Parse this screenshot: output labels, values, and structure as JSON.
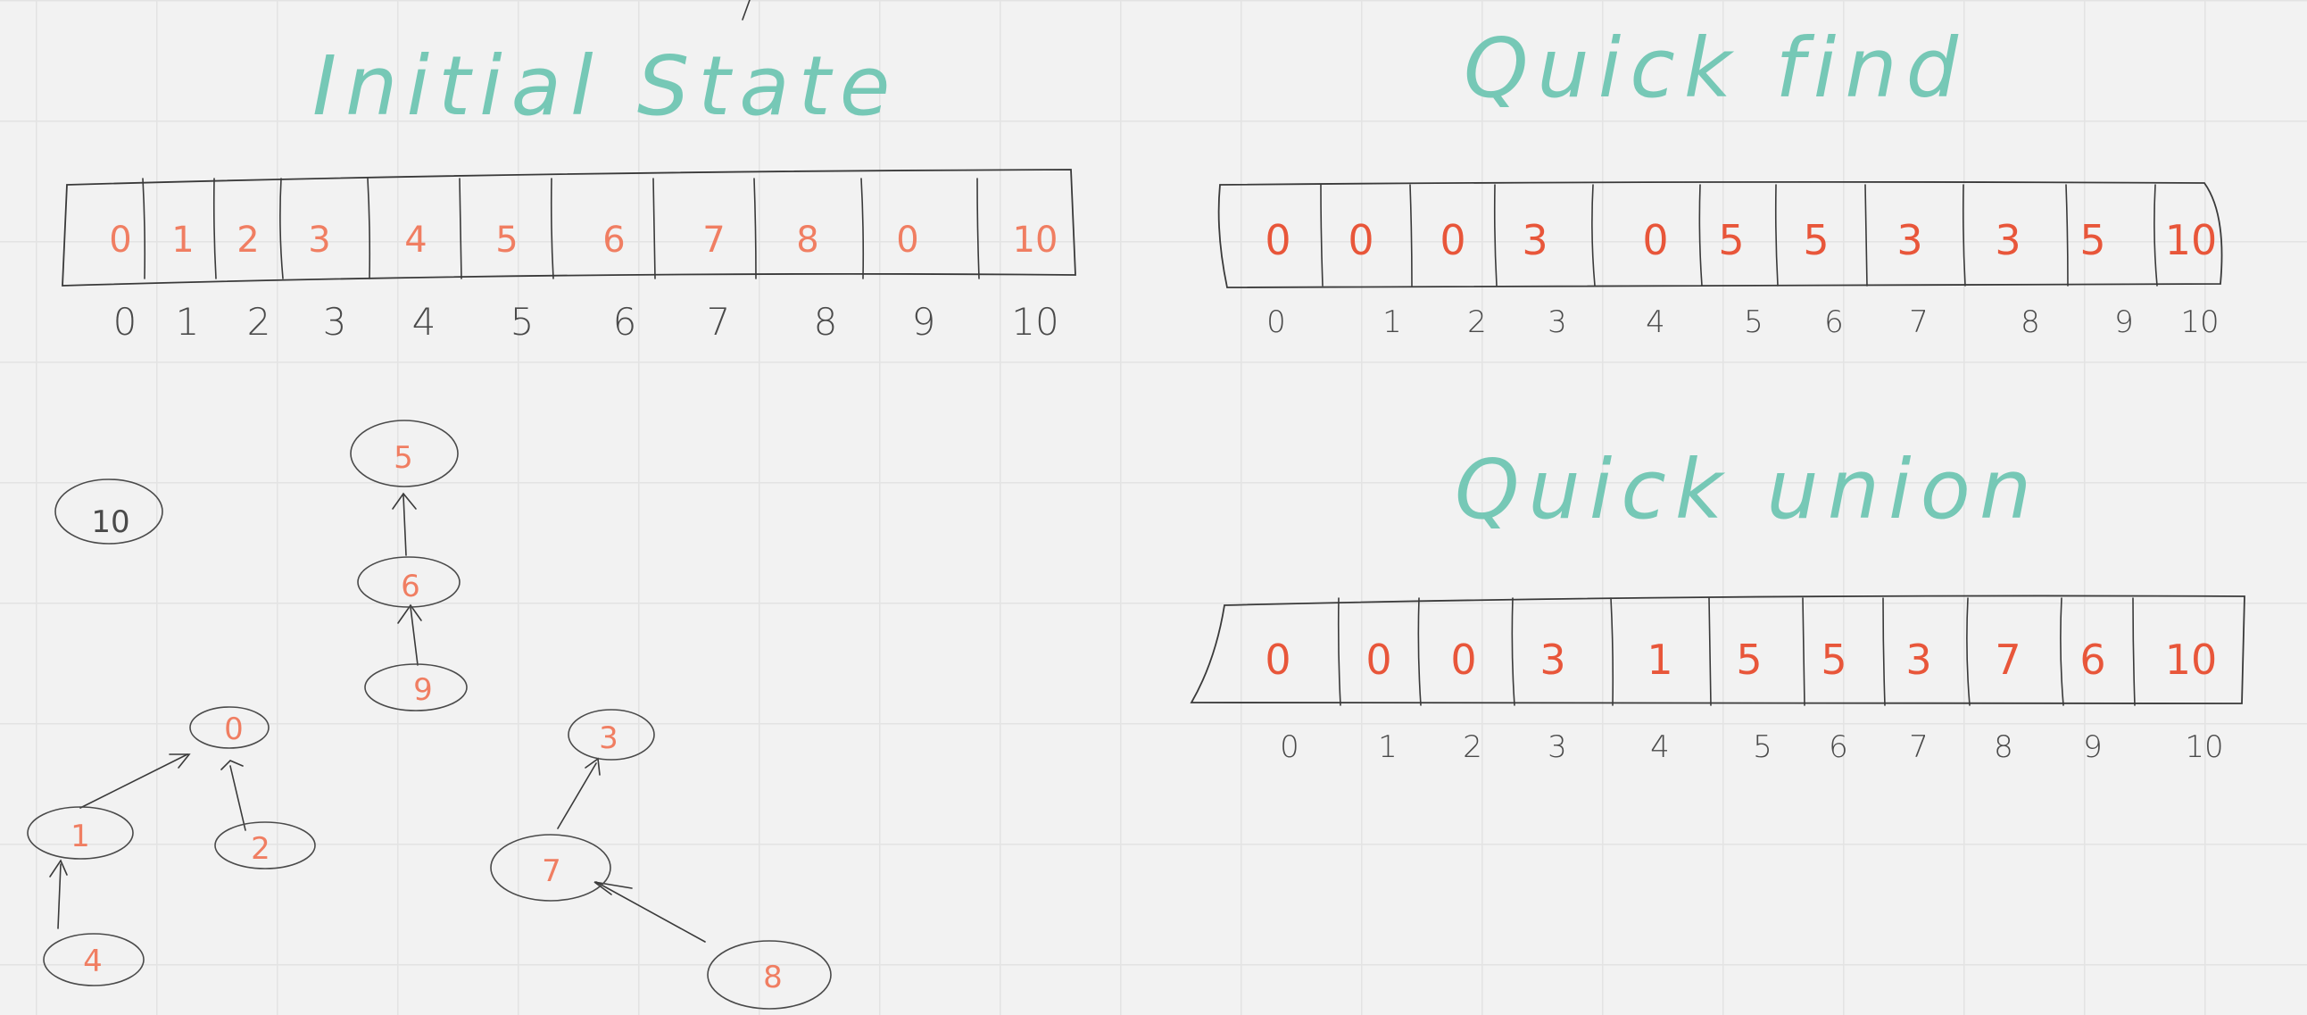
{
  "panels": {
    "initial": {
      "title": "Initial State",
      "values": [
        "0",
        "1",
        "2",
        "3",
        "4",
        "5",
        "6",
        "7",
        "8",
        "0",
        "10"
      ],
      "indices": [
        "0",
        "1",
        "2",
        "3",
        "4",
        "5",
        "6",
        "7",
        "8",
        "9",
        "10"
      ]
    },
    "quick_find": {
      "title": "Quick find",
      "values": [
        "0",
        "0",
        "0",
        "3",
        "0",
        "5",
        "5",
        "3",
        "3",
        "5",
        "10"
      ],
      "indices": [
        "0",
        "1",
        "2",
        "3",
        "4",
        "5",
        "6",
        "7",
        "8",
        "9",
        "10"
      ]
    },
    "quick_union": {
      "title": "Quick union",
      "values": [
        "0",
        "0",
        "0",
        "3",
        "1",
        "5",
        "5",
        "3",
        "7",
        "6",
        "10"
      ],
      "indices": [
        "0",
        "1",
        "2",
        "3",
        "4",
        "5",
        "6",
        "7",
        "8",
        "9",
        "10"
      ]
    }
  },
  "forest": {
    "nodes": [
      {
        "id": "n10",
        "label": "10"
      },
      {
        "id": "n5",
        "label": "5"
      },
      {
        "id": "n6",
        "label": "6"
      },
      {
        "id": "n9",
        "label": "9"
      },
      {
        "id": "n0",
        "label": "0"
      },
      {
        "id": "n1",
        "label": "1"
      },
      {
        "id": "n2",
        "label": "2"
      },
      {
        "id": "n4",
        "label": "4"
      },
      {
        "id": "n3",
        "label": "3"
      },
      {
        "id": "n7",
        "label": "7"
      },
      {
        "id": "n8",
        "label": "8"
      }
    ]
  },
  "colors": {
    "title": "#76c8b6",
    "value": "#e8563a",
    "ink": "#3a3a3a",
    "background": "#f2f2f2"
  }
}
